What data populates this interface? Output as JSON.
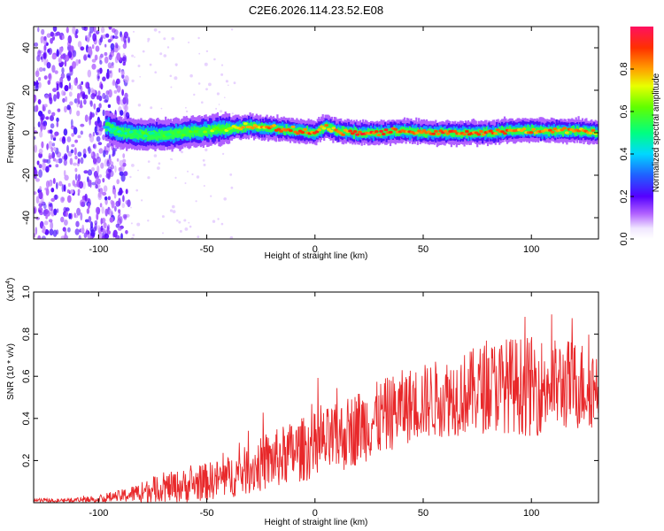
{
  "title": "C2E6.2026.114.23.52.E08",
  "chart_data": [
    {
      "type": "heatmap",
      "title": "C2E6.2026.114.23.52.E08",
      "xlabel": "Height of straight line (km)",
      "ylabel": "Frequency (Hz)",
      "xlim": [
        -130,
        131
      ],
      "ylim": [
        -50,
        50
      ],
      "x_ticks": [
        -100,
        -50,
        0,
        50,
        100
      ],
      "x_tick_labels": [
        "-100",
        "-50",
        "0",
        "50",
        "100"
      ],
      "y_ticks": [
        -40,
        -20,
        0,
        20,
        40
      ],
      "y_tick_labels": [
        "-40",
        "-20",
        "0",
        "20",
        "40"
      ],
      "colorbar": {
        "label": "Normalized spectral amplitude",
        "range": [
          0,
          1
        ],
        "ticks": [
          0.0,
          0.2,
          0.4,
          0.6,
          0.8
        ],
        "tick_labels": [
          "0.0",
          "0.2",
          "0.4",
          "0.6",
          "0.8"
        ]
      },
      "ridge": {
        "description_points_x": [
          -97,
          -90,
          -80,
          -70,
          -60,
          -50,
          -40,
          -30,
          -20,
          -10,
          0,
          5,
          10,
          20,
          30,
          40,
          50,
          60,
          70,
          80,
          90,
          100,
          110,
          120,
          130
        ],
        "frequency_hz": [
          3,
          0,
          -1,
          -1,
          0,
          1,
          2,
          3,
          2,
          1,
          0,
          3,
          1,
          0,
          0,
          1,
          0,
          0,
          0,
          0,
          1,
          1,
          1,
          1,
          0
        ],
        "peak_amplitude": [
          0.5,
          0.55,
          0.6,
          0.6,
          0.65,
          0.7,
          0.75,
          0.85,
          0.9,
          0.9,
          0.95,
          0.85,
          0.9,
          0.95,
          0.95,
          0.9,
          0.95,
          0.95,
          0.95,
          0.95,
          0.9,
          0.9,
          0.9,
          0.9,
          0.85
        ]
      },
      "noise_region_x": [
        -130,
        -86
      ]
    },
    {
      "type": "line",
      "xlabel": "Height of straight line (km)",
      "ylabel": "SNR (10 * v/v)",
      "scale_label": "(x10",
      "scale_exponent": "4",
      "scale_suffix": ")",
      "xlim": [
        -130,
        131
      ],
      "ylim": [
        0,
        1.0
      ],
      "x_ticks": [
        -100,
        -50,
        0,
        50,
        100
      ],
      "x_tick_labels": [
        "-100",
        "-50",
        "0",
        "50",
        "100"
      ],
      "y_ticks": [
        0.2,
        0.4,
        0.6,
        0.8,
        1.0
      ],
      "y_tick_labels": [
        "0.2",
        "0.4",
        "0.6",
        "0.8",
        "1.0"
      ],
      "series": [
        {
          "name": "SNR",
          "color": "#e8282a",
          "envelope_x": [
            -130,
            -120,
            -110,
            -100,
            -90,
            -80,
            -70,
            -60,
            -50,
            -40,
            -30,
            -20,
            -10,
            0,
            10,
            20,
            30,
            40,
            50,
            60,
            70,
            80,
            90,
            100,
            110,
            120,
            131
          ],
          "envelope_mean": [
            0.01,
            0.01,
            0.012,
            0.02,
            0.03,
            0.05,
            0.07,
            0.08,
            0.1,
            0.12,
            0.16,
            0.2,
            0.24,
            0.27,
            0.3,
            0.36,
            0.4,
            0.45,
            0.48,
            0.5,
            0.52,
            0.55,
            0.56,
            0.55,
            0.56,
            0.56,
            0.55
          ],
          "envelope_spread": [
            0.01,
            0.01,
            0.012,
            0.02,
            0.03,
            0.05,
            0.07,
            0.08,
            0.09,
            0.1,
            0.12,
            0.14,
            0.15,
            0.16,
            0.17,
            0.18,
            0.18,
            0.18,
            0.18,
            0.19,
            0.2,
            0.22,
            0.23,
            0.24,
            0.22,
            0.22,
            0.2
          ]
        }
      ]
    }
  ],
  "colors": {
    "line": "#e8282a",
    "axis": "#000000",
    "background": "#ffffff"
  }
}
